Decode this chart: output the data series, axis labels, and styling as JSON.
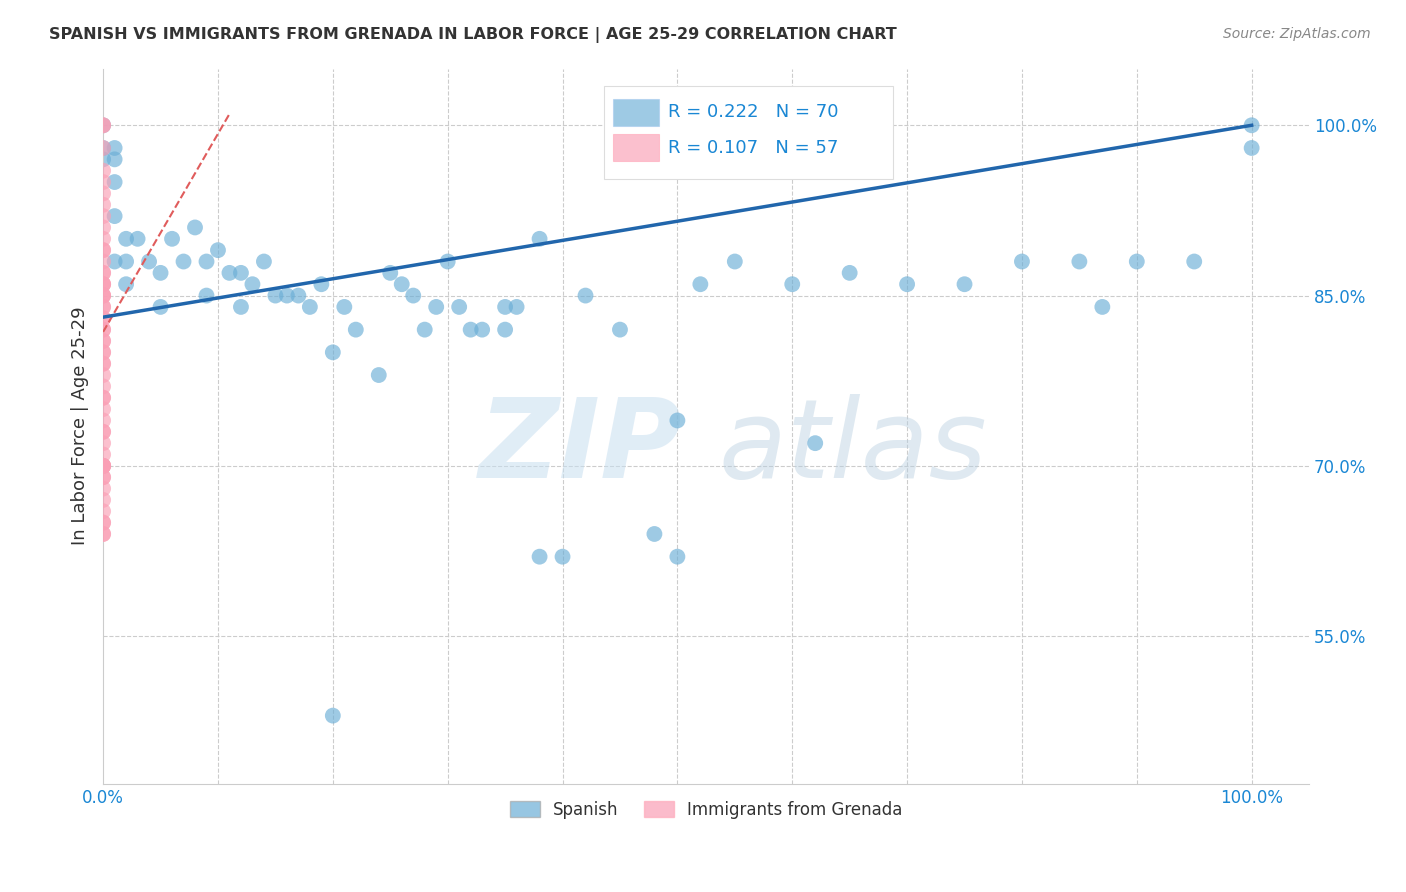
{
  "title": "SPANISH VS IMMIGRANTS FROM GRENADA IN LABOR FORCE | AGE 25-29 CORRELATION CHART",
  "source": "Source: ZipAtlas.com",
  "ylabel": "In Labor Force | Age 25-29",
  "xlim": [
    0.0,
    1.05
  ],
  "ylim": [
    0.42,
    1.05
  ],
  "yticks": [
    0.55,
    0.7,
    0.85,
    1.0
  ],
  "ytick_labels": [
    "55.0%",
    "70.0%",
    "85.0%",
    "100.0%"
  ],
  "legend_blue_label": "Spanish",
  "legend_pink_label": "Immigrants from Grenada",
  "R_blue": 0.222,
  "N_blue": 70,
  "R_pink": 0.107,
  "N_pink": 57,
  "blue_color": "#6baed6",
  "pink_color": "#fa9fb5",
  "trendline_blue_color": "#2166ac",
  "trendline_pink_color": "#e05c5c",
  "watermark_zip": "ZIP",
  "watermark_atlas": "atlas",
  "blue_x": [
    0.0,
    0.0,
    0.0,
    0.01,
    0.01,
    0.01,
    0.01,
    0.01,
    0.02,
    0.02,
    0.02,
    0.03,
    0.04,
    0.05,
    0.05,
    0.06,
    0.07,
    0.08,
    0.09,
    0.09,
    0.1,
    0.11,
    0.12,
    0.12,
    0.13,
    0.14,
    0.15,
    0.16,
    0.17,
    0.18,
    0.19,
    0.2,
    0.21,
    0.22,
    0.24,
    0.25,
    0.26,
    0.27,
    0.28,
    0.29,
    0.3,
    0.31,
    0.32,
    0.33,
    0.35,
    0.35,
    0.36,
    0.38,
    0.4,
    0.42,
    0.45,
    0.48,
    0.5,
    0.52,
    0.55,
    0.6,
    0.62,
    0.65,
    0.7,
    0.75,
    0.8,
    0.85,
    0.87,
    0.9,
    0.95,
    1.0,
    1.0,
    0.38,
    0.5,
    0.2
  ],
  "blue_y": [
    1.0,
    0.98,
    0.97,
    0.98,
    0.97,
    0.95,
    0.92,
    0.88,
    0.9,
    0.88,
    0.86,
    0.9,
    0.88,
    0.87,
    0.84,
    0.9,
    0.88,
    0.91,
    0.88,
    0.85,
    0.89,
    0.87,
    0.87,
    0.84,
    0.86,
    0.88,
    0.85,
    0.85,
    0.85,
    0.84,
    0.86,
    0.8,
    0.84,
    0.82,
    0.78,
    0.87,
    0.86,
    0.85,
    0.82,
    0.84,
    0.88,
    0.84,
    0.82,
    0.82,
    0.84,
    0.82,
    0.84,
    0.9,
    0.62,
    0.85,
    0.82,
    0.64,
    0.74,
    0.86,
    0.88,
    0.86,
    0.72,
    0.87,
    0.86,
    0.86,
    0.88,
    0.88,
    0.84,
    0.88,
    0.88,
    1.0,
    0.98,
    0.62,
    0.62,
    0.48
  ],
  "pink_x": [
    0.0,
    0.0,
    0.0,
    0.0,
    0.0,
    0.0,
    0.0,
    0.0,
    0.0,
    0.0,
    0.0,
    0.0,
    0.0,
    0.0,
    0.0,
    0.0,
    0.0,
    0.0,
    0.0,
    0.0,
    0.0,
    0.0,
    0.0,
    0.0,
    0.0,
    0.0,
    0.0,
    0.0,
    0.0,
    0.0,
    0.0,
    0.0,
    0.0,
    0.0,
    0.0,
    0.0,
    0.0,
    0.0,
    0.0,
    0.0,
    0.0,
    0.0,
    0.0,
    0.0,
    0.0,
    0.0,
    0.0,
    0.0,
    0.0,
    0.0,
    0.0,
    0.0,
    0.0,
    0.0,
    0.0,
    0.0,
    0.0
  ],
  "pink_y": [
    1.0,
    1.0,
    0.98,
    0.96,
    0.95,
    0.94,
    0.93,
    0.92,
    0.91,
    0.9,
    0.89,
    0.89,
    0.88,
    0.87,
    0.87,
    0.86,
    0.86,
    0.86,
    0.85,
    0.85,
    0.85,
    0.84,
    0.84,
    0.83,
    0.83,
    0.82,
    0.82,
    0.81,
    0.81,
    0.8,
    0.8,
    0.79,
    0.79,
    0.78,
    0.77,
    0.76,
    0.76,
    0.75,
    0.74,
    0.73,
    0.73,
    0.72,
    0.71,
    0.7,
    0.7,
    0.69,
    0.69,
    0.68,
    0.67,
    0.66,
    0.65,
    0.65,
    0.64,
    0.7,
    0.7,
    0.7,
    0.64
  ],
  "trendline_blue_x0": 0.0,
  "trendline_blue_x1": 1.0,
  "trendline_blue_y0": 0.831,
  "trendline_blue_y1": 1.0,
  "trendline_pink_x0": 0.0,
  "trendline_pink_x1": 0.11,
  "trendline_pink_y0": 0.818,
  "trendline_pink_y1": 1.01
}
